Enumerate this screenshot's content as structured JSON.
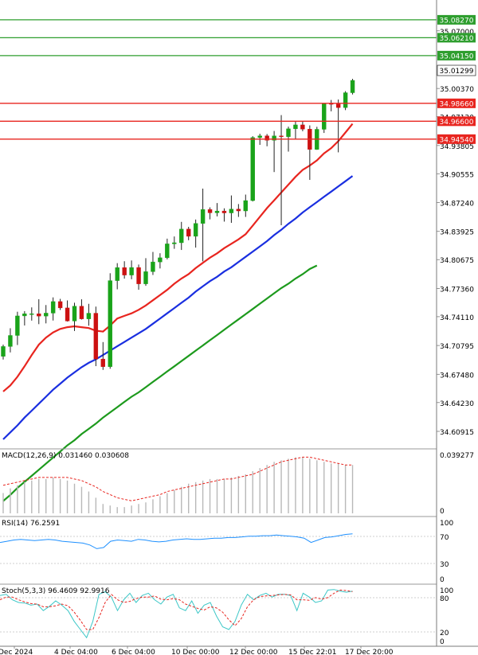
{
  "chart_data": {
    "type": "candlestick",
    "price_axis": {
      "labels": [
        "35.07000",
        "35.00370",
        "34.97120",
        "34.93805",
        "34.90555",
        "34.87240",
        "34.83925",
        "34.80675",
        "34.77360",
        "34.74110",
        "34.70795",
        "34.67480",
        "34.64230",
        "34.60915"
      ],
      "ylim": [
        34.589,
        35.1055
      ]
    },
    "current_price": "35.01299",
    "level_lines": [
      {
        "label": "35.08270",
        "value": 35.0827,
        "color": "#2e9e2e"
      },
      {
        "label": "35.06210",
        "value": 35.0621,
        "color": "#2e9e2e"
      },
      {
        "label": "35.04150",
        "value": 35.0415,
        "color": "#2e9e2e"
      },
      {
        "label": "34.98660",
        "value": 34.9866,
        "color": "#e8251f"
      },
      {
        "label": "34.96600",
        "value": 34.966,
        "color": "#e8251f"
      },
      {
        "label": "34.94540",
        "value": 34.9454,
        "color": "#e8251f"
      }
    ],
    "candles": [
      [
        34.6955,
        34.709,
        34.6918,
        34.7068
      ],
      [
        34.7068,
        34.7278,
        34.7,
        34.7195
      ],
      [
        34.7195,
        34.7468,
        34.7085,
        34.742
      ],
      [
        34.742,
        34.7475,
        34.731,
        34.7445
      ],
      [
        34.7445,
        34.7518,
        34.7366,
        34.7445
      ],
      [
        34.7445,
        34.7612,
        34.7325,
        34.7418
      ],
      [
        34.7418,
        34.7545,
        34.7334,
        34.7452
      ],
      [
        34.7452,
        34.7633,
        34.7367,
        34.7585
      ],
      [
        34.7585,
        34.7616,
        34.7488,
        34.7512
      ],
      [
        34.7512,
        34.7598,
        34.7355,
        34.7361
      ],
      [
        34.7361,
        34.7572,
        34.7247,
        34.7532
      ],
      [
        34.7532,
        34.7611,
        34.7378,
        34.7386
      ],
      [
        34.7386,
        34.7559,
        34.7307,
        34.7451
      ],
      [
        34.7451,
        34.7527,
        34.6842,
        34.6924
      ],
      [
        34.6924,
        34.7119,
        34.6799,
        34.6836
      ],
      [
        34.6836,
        34.7911,
        34.6812,
        34.7826
      ],
      [
        34.7826,
        34.8027,
        34.7726,
        34.7976
      ],
      [
        34.7976,
        34.8049,
        34.7849,
        34.789
      ],
      [
        34.789,
        34.8058,
        34.7842,
        34.7977
      ],
      [
        34.7977,
        34.8011,
        34.7721,
        34.7789
      ],
      [
        34.7789,
        34.8085,
        34.7766,
        34.7929
      ],
      [
        34.7929,
        34.8156,
        34.7891,
        34.8041
      ],
      [
        34.8041,
        34.8141,
        34.7966,
        34.8089
      ],
      [
        34.8089,
        34.8309,
        34.8071,
        34.8249
      ],
      [
        34.8249,
        34.8334,
        34.8192,
        34.8262
      ],
      [
        34.8262,
        34.8502,
        34.8179,
        34.8419
      ],
      [
        34.8419,
        34.8445,
        34.8291,
        34.8336
      ],
      [
        34.8336,
        34.8529,
        34.8206,
        34.8484
      ],
      [
        34.8484,
        34.8885,
        34.8048,
        34.8644
      ],
      [
        34.8644,
        34.8669,
        34.8531,
        34.8606
      ],
      [
        34.8606,
        34.8719,
        34.8565,
        34.8627
      ],
      [
        34.8627,
        34.8658,
        34.8505,
        34.8605
      ],
      [
        34.8605,
        34.8806,
        34.8491,
        34.8649
      ],
      [
        34.8649,
        34.8707,
        34.8559,
        34.8628
      ],
      [
        34.8628,
        34.8816,
        34.8559,
        34.8747
      ],
      [
        34.8747,
        34.9488,
        34.8737,
        34.9472
      ],
      [
        34.9472,
        34.9516,
        34.9388,
        34.9492
      ],
      [
        34.9492,
        34.9513,
        34.9372,
        34.9441
      ],
      [
        34.9441,
        34.9548,
        34.9075,
        34.9491
      ],
      [
        34.9491,
        34.9731,
        34.8463,
        34.9482
      ],
      [
        34.9482,
        34.9598,
        34.9311,
        34.9573
      ],
      [
        34.9573,
        34.9654,
        34.9451,
        34.9618
      ],
      [
        34.9618,
        34.966,
        34.9545,
        34.9569
      ],
      [
        34.9569,
        34.9612,
        34.8985,
        34.9336
      ],
      [
        34.9336,
        34.9596,
        34.9331,
        34.9567
      ],
      [
        34.9567,
        34.9867,
        34.9525,
        34.9864
      ],
      [
        34.9864,
        34.9905,
        34.9774,
        34.9857
      ],
      [
        34.9857,
        34.991,
        34.9302,
        34.9817
      ],
      [
        34.9817,
        35.0006,
        34.9788,
        34.9988
      ],
      [
        34.9988,
        35.0148,
        34.9968,
        35.013
      ]
    ],
    "ma_short": [
      34.655,
      34.662,
      34.672,
      34.684,
      34.697,
      34.709,
      34.717,
      34.723,
      34.727,
      34.729,
      34.73,
      34.729,
      34.728,
      34.725,
      34.724,
      34.731,
      34.739,
      34.742,
      34.745,
      34.749,
      34.754,
      34.76,
      34.766,
      34.772,
      34.779,
      34.785,
      34.79,
      34.797,
      34.803,
      34.809,
      34.814,
      34.82,
      34.825,
      34.83,
      34.836,
      34.846,
      34.856,
      34.866,
      34.875,
      34.884,
      34.893,
      34.902,
      34.91,
      34.915,
      34.921,
      34.929,
      34.935,
      34.943,
      34.953,
      34.963
    ],
    "ma_mid": [
      34.6,
      34.608,
      34.616,
      34.625,
      34.633,
      34.641,
      34.649,
      34.657,
      34.664,
      34.671,
      34.677,
      34.683,
      34.688,
      34.692,
      34.697,
      34.702,
      34.707,
      34.712,
      34.717,
      34.722,
      34.727,
      34.733,
      34.739,
      34.745,
      34.751,
      34.757,
      34.763,
      34.77,
      34.776,
      34.782,
      34.787,
      34.793,
      34.798,
      34.804,
      34.81,
      34.816,
      34.822,
      34.828,
      34.835,
      34.841,
      34.848,
      34.854,
      34.861,
      34.867,
      34.873,
      34.879,
      34.885,
      34.891,
      34.897,
      34.903
    ],
    "ma_long": [
      34.529,
      34.536,
      34.544,
      34.551,
      34.558,
      34.565,
      34.572,
      34.579,
      34.586,
      34.593,
      34.599,
      34.606,
      34.612,
      34.618,
      34.625,
      34.631,
      34.637,
      34.643,
      34.649,
      34.654,
      34.66,
      34.666,
      34.672,
      34.678,
      34.684,
      34.69,
      34.696,
      34.702,
      34.708,
      34.714,
      34.72,
      34.726,
      34.732,
      34.738,
      34.744,
      34.75,
      34.756,
      34.762,
      34.768,
      34.774,
      34.779,
      34.785,
      34.79,
      34.796,
      34.8
    ],
    "x_labels": [
      "Dec 2024",
      "4 Dec 04:00",
      "6 Dec 04:00",
      "10 Dec 00:00",
      "12 Dec 00:00",
      "15 Dec 22:01",
      "17 Dec 20:00"
    ],
    "macd": {
      "title": "MACD(12,26,9) 0.031460 0.030608",
      "axis_labels": [
        "0.039277",
        "0"
      ],
      "histogram": [
        0.013,
        0.016,
        0.018,
        0.02,
        0.021,
        0.022,
        0.022,
        0.023,
        0.022,
        0.021,
        0.019,
        0.017,
        0.014,
        0.01,
        0.006,
        0.005,
        0.004,
        0.004,
        0.005,
        0.006,
        0.007,
        0.009,
        0.011,
        0.013,
        0.015,
        0.017,
        0.019,
        0.02,
        0.021,
        0.022,
        0.022,
        0.022,
        0.023,
        0.024,
        0.025,
        0.027,
        0.029,
        0.031,
        0.033,
        0.034,
        0.035,
        0.036,
        0.036,
        0.035,
        0.034,
        0.033,
        0.032,
        0.032,
        0.031,
        0.031
      ],
      "signal": [
        0.018,
        0.019,
        0.02,
        0.021,
        0.022,
        0.023,
        0.023,
        0.023,
        0.023,
        0.023,
        0.022,
        0.021,
        0.019,
        0.017,
        0.014,
        0.012,
        0.01,
        0.009,
        0.008,
        0.009,
        0.01,
        0.011,
        0.012,
        0.014,
        0.015,
        0.016,
        0.017,
        0.018,
        0.019,
        0.02,
        0.021,
        0.022,
        0.022,
        0.023,
        0.024,
        0.025,
        0.027,
        0.029,
        0.031,
        0.033,
        0.034,
        0.035,
        0.036,
        0.036,
        0.035,
        0.034,
        0.033,
        0.032,
        0.031,
        0.031
      ]
    },
    "rsi": {
      "title": "RSI(14) 76.2591",
      "axis_labels": [
        "100",
        "70",
        "30",
        "0"
      ],
      "values": [
        62,
        64,
        66,
        67,
        66,
        65,
        66,
        67,
        66,
        64,
        63,
        62,
        61,
        58,
        52,
        54,
        64,
        66,
        65,
        64,
        67,
        66,
        64,
        63,
        64,
        66,
        67,
        68,
        67,
        67,
        68,
        69,
        69,
        70,
        70,
        71,
        72,
        72,
        73,
        73,
        74,
        73,
        72,
        71,
        69,
        62,
        66,
        70,
        71,
        73,
        75,
        76
      ]
    },
    "stoch": {
      "title": "Stoch(5,3,3) 96.4609 92.9916",
      "axis_labels": [
        "100",
        "80",
        "20",
        "0"
      ],
      "k": [
        88,
        90,
        80,
        75,
        74,
        70,
        72,
        60,
        68,
        78,
        70,
        60,
        40,
        25,
        10,
        40,
        90,
        95,
        85,
        60,
        80,
        92,
        75,
        88,
        92,
        80,
        72,
        85,
        90,
        65,
        60,
        78,
        55,
        70,
        75,
        50,
        30,
        25,
        40,
        70,
        90,
        80,
        88,
        92,
        85,
        90,
        90,
        88,
        60,
        92,
        85,
        75,
        78,
        98,
        99,
        96,
        94,
        96
      ],
      "d": [
        80,
        85,
        85,
        80,
        76,
        73,
        72,
        67,
        67,
        69,
        72,
        69,
        57,
        42,
        25,
        25,
        47,
        75,
        90,
        80,
        75,
        77,
        82,
        85,
        85,
        87,
        81,
        80,
        82,
        80,
        72,
        68,
        64,
        61,
        67,
        65,
        57,
        43,
        32,
        45,
        67,
        80,
        86,
        87,
        88,
        89,
        90,
        89,
        80,
        80,
        79,
        84,
        81,
        84,
        92,
        98,
        97,
        95
      ]
    }
  }
}
